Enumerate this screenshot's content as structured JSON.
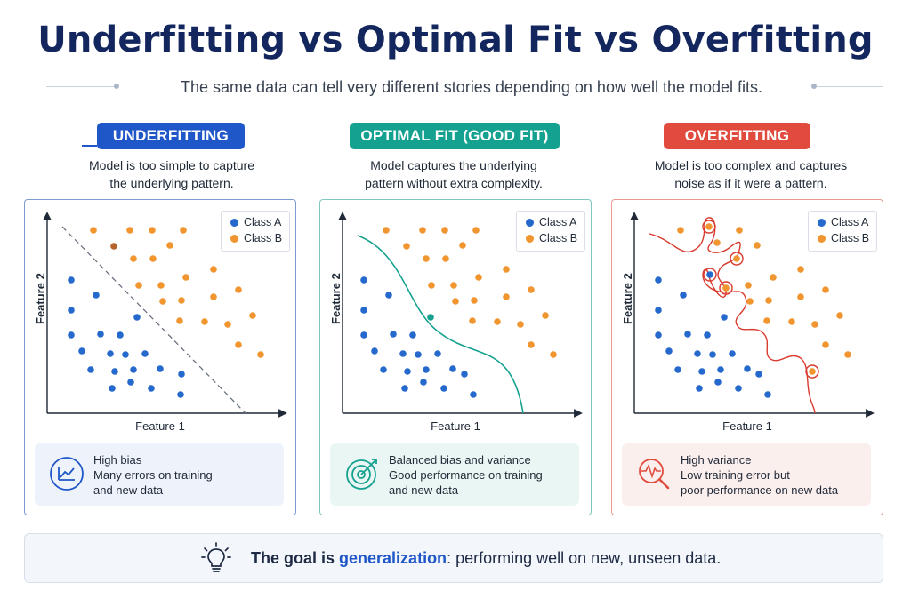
{
  "title": "Underfitting vs Optimal Fit vs Overfitting",
  "subtitle": "The same data can tell very different stories depending on how well the model fits.",
  "colors": {
    "class_a": "#2569cc",
    "class_b": "#f0952f",
    "underfit": "#1f57c8",
    "optimal": "#15a18f",
    "overfit": "#e04b3e"
  },
  "panels": [
    {
      "id": "under",
      "heading": "UNDERFITTING",
      "description": "Model is too simple to capture\nthe underlying pattern.",
      "x_axis": "Feature 1",
      "y_axis": "Feature 2",
      "legend": [
        "Class A",
        "Class B"
      ],
      "boundary": "straight dashed diagonal line",
      "info_icon": "line-chart-icon",
      "info_title": "High bias",
      "info_body": "Many errors on training\nand new data"
    },
    {
      "id": "opt",
      "heading": "OPTIMAL FIT (GOOD FIT)",
      "description": "Model captures the underlying\npattern without extra complexity.",
      "x_axis": "Feature 1",
      "y_axis": "Feature 2",
      "legend": [
        "Class A",
        "Class B"
      ],
      "boundary": "smooth curve",
      "info_icon": "target-icon",
      "info_title": "Balanced bias and variance",
      "info_body": "Good performance on training\nand new data"
    },
    {
      "id": "over",
      "heading": "OVERFITTING",
      "description": "Model is too complex and captures\nnoise as if it were a pattern.",
      "x_axis": "Feature 1",
      "y_axis": "Feature 2",
      "legend": [
        "Class A",
        "Class B"
      ],
      "boundary": "wiggly curve circling outliers",
      "info_icon": "magnifier-pulse-icon",
      "info_title": "High variance",
      "info_body": "Low training error but\npoor performance on new data"
    }
  ],
  "footer": {
    "icon": "lightbulb-icon",
    "lead": "The goal is ",
    "emphasis": "generalization",
    "rest": ":  performing well on new, unseen data."
  }
}
